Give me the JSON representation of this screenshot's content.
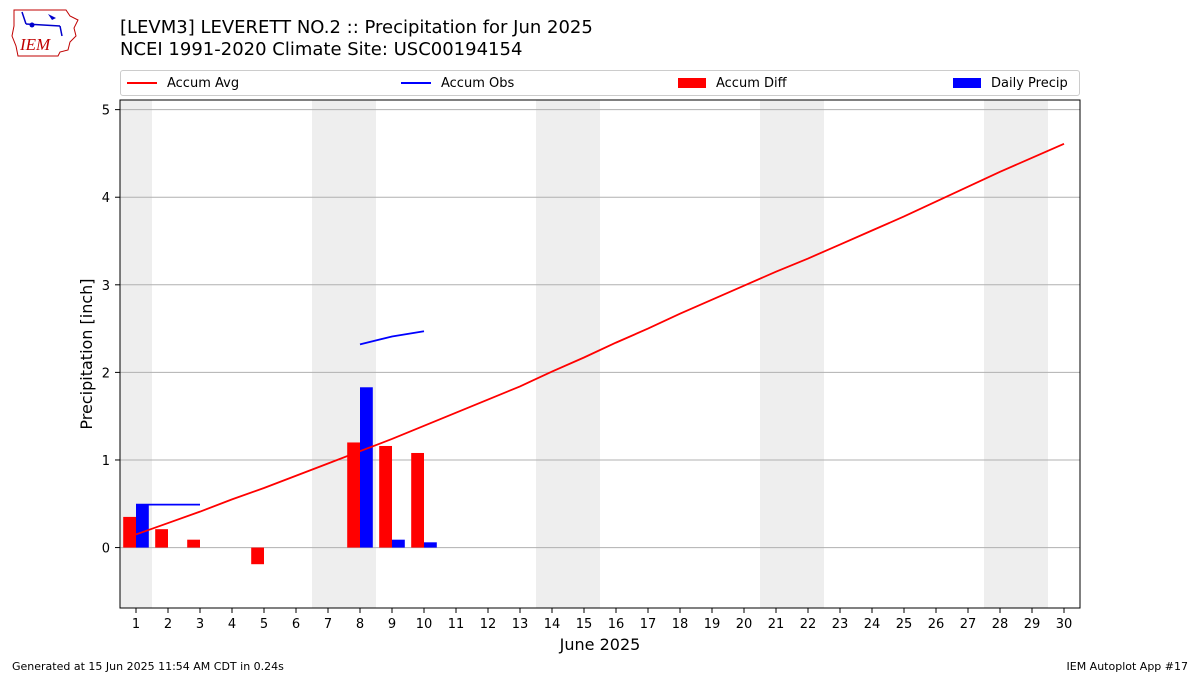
{
  "header": {
    "title_line1": "[LEVM3] LEVERETT NO.2 :: Precipitation for Jun 2025",
    "title_line2": "NCEI 1991-2020 Climate Site: USC00194154",
    "logo_text": "IEM"
  },
  "legend": {
    "items": [
      {
        "label": "Accum Avg",
        "kind": "line",
        "color": "#ff0000"
      },
      {
        "label": "Accum Obs",
        "kind": "line",
        "color": "#0000ff"
      },
      {
        "label": "Accum Diff",
        "kind": "patch",
        "color": "#ff0000"
      },
      {
        "label": "Daily Precip",
        "kind": "patch",
        "color": "#0000ff"
      }
    ],
    "placement": "top, above plot, spanning width"
  },
  "footer": {
    "left": "Generated at 15 Jun 2025 11:54 AM CDT in 0.24s",
    "right": "IEM Autoplot App #17"
  },
  "chart_data": {
    "type": "bar",
    "xlabel": "June 2025",
    "ylabel": "Precipitation [inch]",
    "xlim": [
      0.5,
      30.5
    ],
    "ylim": [
      -0.69,
      5.11
    ],
    "x_ticks": [
      1,
      2,
      3,
      4,
      5,
      6,
      7,
      8,
      9,
      10,
      11,
      12,
      13,
      14,
      15,
      16,
      17,
      18,
      19,
      20,
      21,
      22,
      23,
      24,
      25,
      26,
      27,
      28,
      29,
      30
    ],
    "y_ticks": [
      0,
      1,
      2,
      3,
      4,
      5
    ],
    "grid": "horizontal",
    "weekend_shading": [
      [
        0.5,
        1.5
      ],
      [
        6.5,
        8.5
      ],
      [
        13.5,
        15.5
      ],
      [
        20.5,
        22.5
      ],
      [
        27.5,
        29.5
      ]
    ],
    "shading_color": "#eeeeee",
    "series": [
      {
        "name": "Accum Avg",
        "kind": "line",
        "color": "#ff0000",
        "x": [
          1,
          2,
          3,
          4,
          5,
          6,
          7,
          8,
          9,
          10,
          11,
          12,
          13,
          14,
          15,
          16,
          17,
          18,
          19,
          20,
          21,
          22,
          23,
          24,
          25,
          26,
          27,
          28,
          29,
          30
        ],
        "y": [
          0.15,
          0.28,
          0.41,
          0.55,
          0.68,
          0.82,
          0.96,
          1.1,
          1.24,
          1.39,
          1.54,
          1.69,
          1.84,
          2.01,
          2.17,
          2.34,
          2.5,
          2.67,
          2.83,
          2.99,
          3.15,
          3.3,
          3.46,
          3.62,
          3.78,
          3.95,
          4.12,
          4.29,
          4.45,
          4.61
        ]
      },
      {
        "name": "Accum Obs",
        "kind": "line",
        "color": "#0000ff",
        "x": [
          1,
          2,
          3,
          8,
          9,
          10
        ],
        "y": [
          0.49,
          0.49,
          0.49,
          2.32,
          2.41,
          2.47
        ]
      },
      {
        "name": "Accum Diff",
        "kind": "bar",
        "color": "#ff0000",
        "x": [
          1,
          2,
          3,
          5,
          8,
          9,
          10
        ],
        "y": [
          0.35,
          0.21,
          0.09,
          -0.19,
          1.2,
          1.16,
          1.08
        ]
      },
      {
        "name": "Daily Precip",
        "kind": "bar",
        "color": "#0000ff",
        "x": [
          1,
          8,
          9,
          10
        ],
        "y": [
          0.49,
          1.83,
          0.09,
          0.06
        ]
      }
    ]
  }
}
